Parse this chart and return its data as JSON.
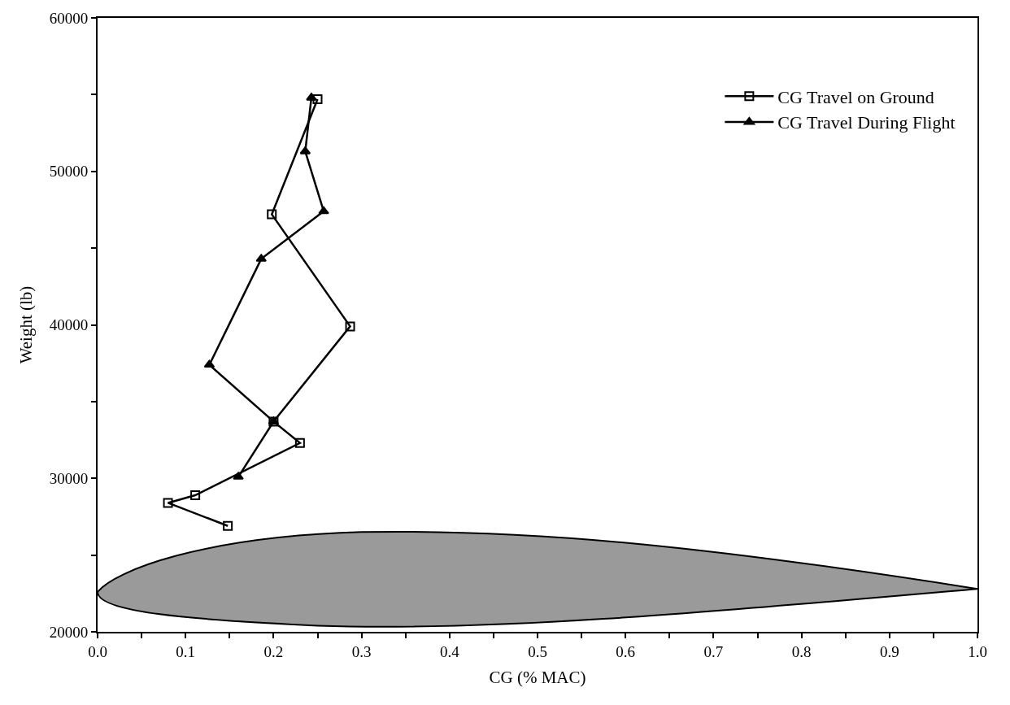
{
  "chart_data": {
    "type": "line",
    "xlabel": "CG (% MAC)",
    "ylabel": "Weight (lb)",
    "xlim": [
      0.0,
      1.0
    ],
    "ylim": [
      20000,
      60000
    ],
    "xticks": [
      {
        "value": 0.0,
        "label": "0.0"
      },
      {
        "value": 0.05,
        "label": null
      },
      0.1,
      {
        "value": 0.15,
        "label": null
      },
      0.2,
      {
        "value": 0.25,
        "label": null
      },
      0.3,
      {
        "value": 0.35,
        "label": null
      },
      0.4,
      {
        "value": 0.45,
        "label": null
      },
      0.5,
      {
        "value": 0.55,
        "label": null
      },
      0.6,
      {
        "value": 0.65,
        "label": null
      },
      0.7,
      {
        "value": 0.75,
        "label": null
      },
      0.8,
      {
        "value": 0.85,
        "label": null
      },
      0.9,
      {
        "value": 0.95,
        "label": null
      },
      {
        "value": 1.0,
        "label": "1.0"
      }
    ],
    "yticks": [
      20000,
      {
        "value": 25000,
        "label": null
      },
      30000,
      {
        "value": 35000,
        "label": null
      },
      40000,
      {
        "value": 45000,
        "label": null
      },
      50000,
      {
        "value": 55000,
        "label": null
      },
      60000
    ],
    "grid": false,
    "legend": "top right",
    "line_style": "solid",
    "series": [
      {
        "name": "CG Travel on Ground",
        "color": "#000000",
        "marker": "square",
        "x": [
          0.25,
          0.198,
          0.287,
          0.2,
          0.23,
          0.111,
          0.08,
          0.148
        ],
        "values": [
          54700,
          47200,
          39900,
          33700,
          32300,
          28900,
          28400,
          26900
        ]
      },
      {
        "name": "CG Travel During Flight",
        "color": "#000000",
        "marker": "triangle",
        "x": [
          0.243,
          0.236,
          0.257,
          0.186,
          0.127,
          0.2,
          0.16
        ],
        "values": [
          54800,
          51300,
          47400,
          44300,
          37400,
          33700,
          30100
        ]
      }
    ]
  }
}
